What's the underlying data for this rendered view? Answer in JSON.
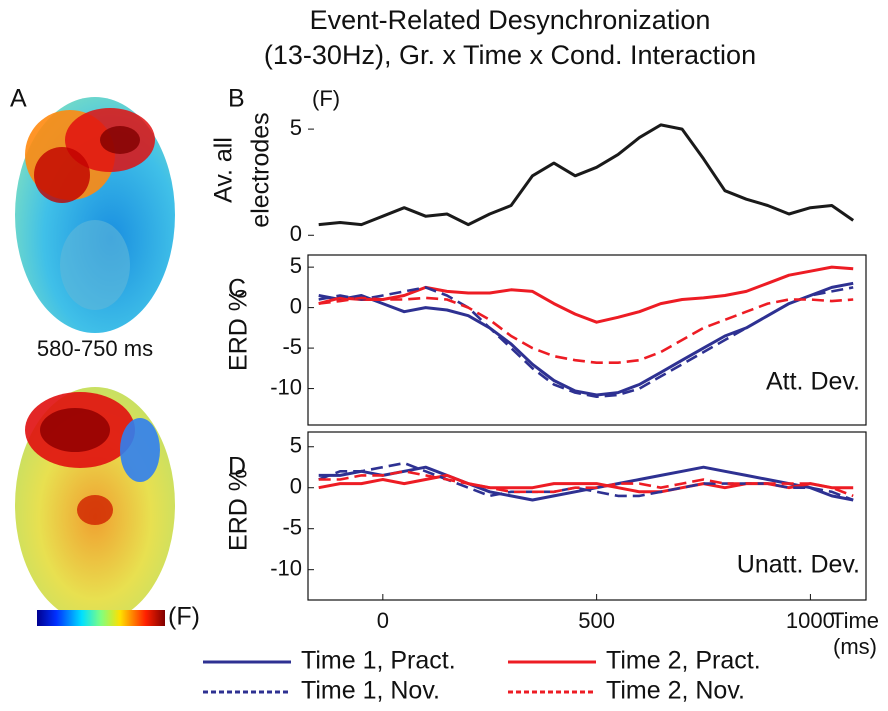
{
  "title": [
    "Event-Related Desynchronization",
    "(13-30Hz), Gr. x Time x Cond. Interaction"
  ],
  "panel_a": {
    "label": "A",
    "time": "580-750 ms",
    "colorbar_label": "(F)"
  },
  "chart_data": [
    {
      "type": "line",
      "label": "B",
      "ylabel": [
        "Av. all",
        "electrodes"
      ],
      "unit": "(F)",
      "frame": false,
      "xlim": [
        -175,
        1130
      ],
      "ylim": [
        -0.6,
        5.9
      ],
      "yticks": [
        0,
        5
      ],
      "x": [
        -150,
        -100,
        -50,
        0,
        50,
        100,
        150,
        200,
        250,
        300,
        350,
        400,
        450,
        500,
        550,
        600,
        650,
        700,
        750,
        800,
        850,
        900,
        950,
        1000,
        1050,
        1100
      ],
      "series": [
        {
          "name": "Av. all electrodes",
          "color": "#1a1a1a",
          "style": "solid",
          "values": [
            0.5,
            0.6,
            0.5,
            0.9,
            1.3,
            0.9,
            1.0,
            0.5,
            1.0,
            1.4,
            2.8,
            3.4,
            2.8,
            3.2,
            3.8,
            4.6,
            5.2,
            5.0,
            3.6,
            2.1,
            1.7,
            1.4,
            1.0,
            1.3,
            1.4,
            0.7
          ]
        }
      ]
    },
    {
      "type": "line",
      "label": "C",
      "ylabel": [
        "ERD %"
      ],
      "annotation": "Att. Dev.",
      "frame": true,
      "xlim": [
        -175,
        1130
      ],
      "ylim": [
        -14.5,
        6.5
      ],
      "yticks": [
        -10,
        -5,
        0,
        5
      ],
      "x": [
        -150,
        -100,
        -50,
        0,
        50,
        100,
        150,
        200,
        250,
        300,
        350,
        400,
        450,
        500,
        550,
        600,
        650,
        700,
        750,
        800,
        850,
        900,
        950,
        1000,
        1050,
        1100
      ],
      "legend": true,
      "series": [
        {
          "name": "Time 1, Pract.",
          "color": "#2e3192",
          "style": "solid",
          "values": [
            1.5,
            1.0,
            1.5,
            0.5,
            -0.5,
            0,
            -0.3,
            -1.0,
            -2.5,
            -4.5,
            -7.0,
            -9.0,
            -10.3,
            -10.8,
            -10.5,
            -9.5,
            -8,
            -6.5,
            -5,
            -3.5,
            -2.5,
            -1,
            0.5,
            1.5,
            2.5,
            3.0
          ]
        },
        {
          "name": "Time 2, Pract.",
          "color": "#ed1c24",
          "style": "solid",
          "values": [
            0.5,
            1.2,
            1.0,
            1.0,
            1.5,
            2.5,
            2.0,
            1.8,
            1.8,
            2.2,
            2.0,
            0.5,
            -0.8,
            -1.8,
            -1.2,
            -0.5,
            0.5,
            1.0,
            1.2,
            1.5,
            2.0,
            3.0,
            4.0,
            4.5,
            5.0,
            4.8
          ]
        },
        {
          "name": "Time 1, Nov.",
          "color": "#2e3192",
          "style": "dashed",
          "values": [
            1.0,
            1.5,
            1.0,
            1.5,
            2.0,
            2.5,
            1.5,
            0,
            -2.5,
            -5,
            -7.5,
            -9.5,
            -10.5,
            -11,
            -10.8,
            -10,
            -8.5,
            -7,
            -5.5,
            -4,
            -2.5,
            -1,
            0.5,
            1.5,
            2.0,
            2.5
          ]
        },
        {
          "name": "Time 2, Nov.",
          "color": "#ed1c24",
          "style": "dashed",
          "values": [
            0.5,
            0.8,
            1.2,
            1.0,
            1.0,
            1.2,
            1.0,
            0,
            -1.5,
            -3.5,
            -5,
            -6,
            -6.5,
            -6.8,
            -6.8,
            -6.5,
            -5.5,
            -4,
            -2.5,
            -1.5,
            -0.5,
            0.5,
            1.0,
            1.0,
            0.8,
            1.0
          ]
        }
      ]
    },
    {
      "type": "line",
      "label": "D",
      "ylabel": [
        "ERD %"
      ],
      "annotation": "Unatt. Dev.",
      "frame": true,
      "xlim": [
        -175,
        1130
      ],
      "ylim": [
        -13.7,
        6.8
      ],
      "yticks": [
        -10,
        -5,
        0,
        5
      ],
      "xticks": [
        0,
        500,
        1000
      ],
      "xlabel": [
        "Time",
        "(ms)"
      ],
      "x": [
        -150,
        -100,
        -50,
        0,
        50,
        100,
        150,
        200,
        250,
        300,
        350,
        400,
        450,
        500,
        550,
        600,
        650,
        700,
        750,
        800,
        850,
        900,
        950,
        1000,
        1050,
        1100
      ],
      "series": [
        {
          "color": "#2e3192",
          "style": "solid",
          "values": [
            1.5,
            1.5,
            2.0,
            1.5,
            2.0,
            2.5,
            1.5,
            0.5,
            -0.5,
            -1.0,
            -1.5,
            -1.0,
            -0.5,
            0,
            0.5,
            1.0,
            1.5,
            2.0,
            2.5,
            2.0,
            1.5,
            1.0,
            0.5,
            0,
            -1.0,
            -1.5
          ]
        },
        {
          "color": "#ed1c24",
          "style": "solid",
          "values": [
            0,
            0.5,
            0.5,
            1.0,
            0.5,
            1.0,
            1.5,
            0.5,
            0,
            0,
            0,
            0.5,
            0.5,
            0.5,
            0,
            -0.5,
            -0.5,
            0,
            0.5,
            0,
            0.5,
            0.5,
            0,
            0.5,
            0,
            0
          ]
        },
        {
          "color": "#2e3192",
          "style": "dashed",
          "values": [
            1.0,
            2.0,
            2.0,
            2.5,
            3.0,
            2.0,
            1.0,
            0,
            -1.0,
            -0.5,
            -0.5,
            -0.5,
            0,
            -0.5,
            -1.0,
            -1.0,
            -0.5,
            0,
            0.5,
            0.5,
            0.5,
            0.5,
            0,
            0,
            -0.5,
            -1.5
          ]
        },
        {
          "color": "#ed1c24",
          "style": "dashed",
          "values": [
            1.0,
            1.0,
            1.5,
            1.5,
            2.0,
            1.5,
            1.0,
            0.5,
            0,
            -0.5,
            -0.5,
            -0.5,
            0,
            0,
            0.5,
            0.5,
            0,
            0.5,
            1.0,
            0.5,
            0.5,
            0.5,
            0.5,
            0.5,
            0,
            -1.0
          ]
        }
      ]
    }
  ]
}
